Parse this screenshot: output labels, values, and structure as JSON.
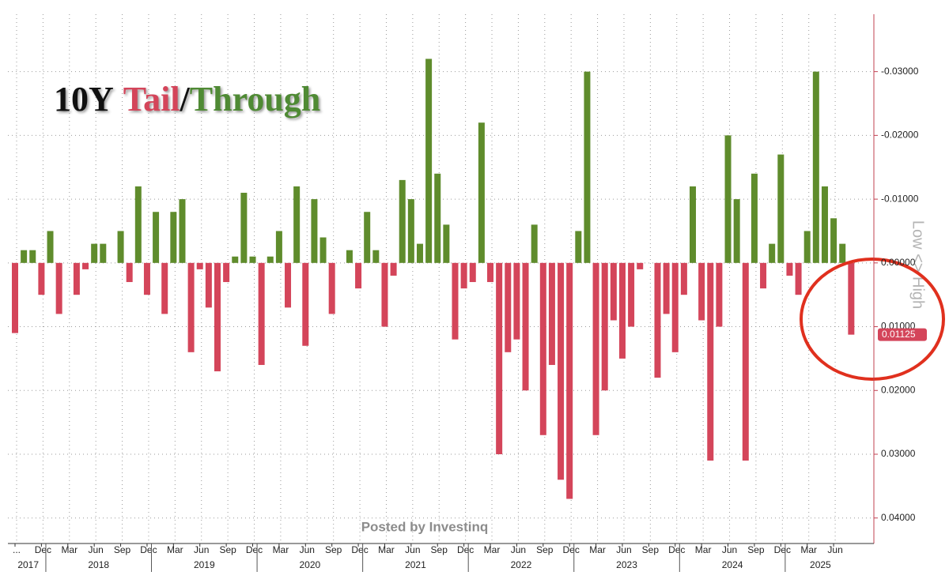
{
  "chart_data": {
    "type": "bar",
    "title": [
      "10Y",
      "Tail",
      "/",
      "Through"
    ],
    "title_colors": [
      "#111111",
      "#d4455a",
      "#111111",
      "#4f8a34"
    ],
    "watermark": "Posted by Investinq",
    "axis_label": "Low <> High",
    "tail_color": "#d4455a",
    "through_color": "#5f8c2c",
    "categories": [
      "...",
      null,
      null,
      "Dec",
      null,
      null,
      "Mar",
      null,
      null,
      "Jun",
      null,
      null,
      "Sep",
      null,
      null,
      "Dec",
      null,
      null,
      "Mar",
      null,
      null,
      "Jun",
      null,
      null,
      "Sep",
      null,
      null,
      "Dec",
      null,
      null,
      "Mar",
      null,
      null,
      "Jun",
      null,
      null,
      "Sep",
      null,
      null,
      "Dec",
      null,
      null,
      "Mar",
      null,
      null,
      "Jun",
      null,
      null,
      "Sep",
      null,
      null,
      "Dec",
      null,
      null,
      "Mar",
      null,
      null,
      "Jun",
      null,
      null,
      "Sep",
      null,
      null,
      "Dec",
      null,
      null,
      "Mar",
      null,
      null,
      "Jun",
      null,
      null,
      "Sep",
      null,
      null,
      "Dec",
      null,
      null,
      "Mar",
      null,
      null,
      "Jun",
      null,
      null,
      "Sep",
      null,
      null,
      "Dec",
      null,
      null,
      "Mar",
      null,
      null,
      "Jun",
      null,
      null
    ],
    "years": [
      "2017",
      "2018",
      "2019",
      "2020",
      "2021",
      "2022",
      "2023",
      "2024",
      "2025"
    ],
    "values": [
      0.011,
      -0.002,
      -0.002,
      0.005,
      -0.005,
      0.008,
      0,
      0.005,
      0.001,
      -0.003,
      -0.003,
      0,
      -0.005,
      0.003,
      -0.012,
      0.005,
      -0.008,
      0.008,
      -0.008,
      -0.01,
      0.014,
      0.001,
      0.007,
      0.017,
      0.003,
      -0.001,
      -0.011,
      -0.001,
      0.016,
      -0.001,
      -0.005,
      0.007,
      -0.012,
      0.013,
      -0.01,
      -0.004,
      0.008,
      0,
      -0.002,
      0.004,
      -0.008,
      -0.002,
      0.01,
      0.002,
      -0.013,
      -0.01,
      -0.003,
      -0.032,
      -0.014,
      -0.006,
      0.012,
      0.004,
      0.003,
      -0.022,
      0.003,
      0.03,
      0.014,
      0.012,
      0.02,
      -0.006,
      0.027,
      0.016,
      0.034,
      0.037,
      -0.005,
      -0.03,
      0.027,
      0.02,
      0.009,
      0.015,
      0.01,
      0.001,
      0,
      0.018,
      0.008,
      0.014,
      0.005,
      -0.012,
      0.009,
      0.031,
      0.01,
      -0.02,
      -0.01,
      0.031,
      -0.014,
      0.004,
      -0.003,
      -0.017,
      0.002,
      0.005,
      -0.005,
      -0.03,
      -0.012,
      -0.007,
      -0.003,
      0.01125
    ],
    "ylim": [
      -0.039,
      0.044
    ],
    "y_inverted": true,
    "yticks": [
      {
        "value": -0.03,
        "label": "-0.03000"
      },
      {
        "value": -0.02,
        "label": "-0.02000"
      },
      {
        "value": -0.01,
        "label": "-0.01000"
      },
      {
        "value": 0,
        "label": "0.00000"
      },
      {
        "value": 0.01,
        "label": "0.01000"
      },
      {
        "value": 0.02,
        "label": "0.02000"
      },
      {
        "value": 0.03,
        "label": "0.03000"
      },
      {
        "value": 0.04,
        "label": "0.04000"
      }
    ],
    "grid": true
  }
}
